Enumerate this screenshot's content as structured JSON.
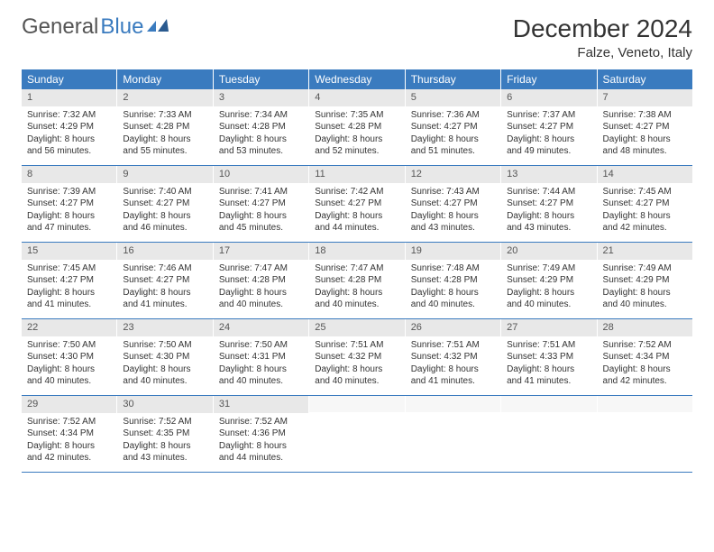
{
  "logo": {
    "text1": "General",
    "text2": "Blue"
  },
  "title": "December 2024",
  "location": "Falze, Veneto, Italy",
  "colors": {
    "header_bg": "#3a7bbf",
    "header_text": "#ffffff",
    "daynum_bg": "#e8e8e8",
    "text": "#333333"
  },
  "dayNames": [
    "Sunday",
    "Monday",
    "Tuesday",
    "Wednesday",
    "Thursday",
    "Friday",
    "Saturday"
  ],
  "weeks": [
    [
      {
        "num": "1",
        "sunrise": "7:32 AM",
        "sunset": "4:29 PM",
        "daylight": "8 hours and 56 minutes."
      },
      {
        "num": "2",
        "sunrise": "7:33 AM",
        "sunset": "4:28 PM",
        "daylight": "8 hours and 55 minutes."
      },
      {
        "num": "3",
        "sunrise": "7:34 AM",
        "sunset": "4:28 PM",
        "daylight": "8 hours and 53 minutes."
      },
      {
        "num": "4",
        "sunrise": "7:35 AM",
        "sunset": "4:28 PM",
        "daylight": "8 hours and 52 minutes."
      },
      {
        "num": "5",
        "sunrise": "7:36 AM",
        "sunset": "4:27 PM",
        "daylight": "8 hours and 51 minutes."
      },
      {
        "num": "6",
        "sunrise": "7:37 AM",
        "sunset": "4:27 PM",
        "daylight": "8 hours and 49 minutes."
      },
      {
        "num": "7",
        "sunrise": "7:38 AM",
        "sunset": "4:27 PM",
        "daylight": "8 hours and 48 minutes."
      }
    ],
    [
      {
        "num": "8",
        "sunrise": "7:39 AM",
        "sunset": "4:27 PM",
        "daylight": "8 hours and 47 minutes."
      },
      {
        "num": "9",
        "sunrise": "7:40 AM",
        "sunset": "4:27 PM",
        "daylight": "8 hours and 46 minutes."
      },
      {
        "num": "10",
        "sunrise": "7:41 AM",
        "sunset": "4:27 PM",
        "daylight": "8 hours and 45 minutes."
      },
      {
        "num": "11",
        "sunrise": "7:42 AM",
        "sunset": "4:27 PM",
        "daylight": "8 hours and 44 minutes."
      },
      {
        "num": "12",
        "sunrise": "7:43 AM",
        "sunset": "4:27 PM",
        "daylight": "8 hours and 43 minutes."
      },
      {
        "num": "13",
        "sunrise": "7:44 AM",
        "sunset": "4:27 PM",
        "daylight": "8 hours and 43 minutes."
      },
      {
        "num": "14",
        "sunrise": "7:45 AM",
        "sunset": "4:27 PM",
        "daylight": "8 hours and 42 minutes."
      }
    ],
    [
      {
        "num": "15",
        "sunrise": "7:45 AM",
        "sunset": "4:27 PM",
        "daylight": "8 hours and 41 minutes."
      },
      {
        "num": "16",
        "sunrise": "7:46 AM",
        "sunset": "4:27 PM",
        "daylight": "8 hours and 41 minutes."
      },
      {
        "num": "17",
        "sunrise": "7:47 AM",
        "sunset": "4:28 PM",
        "daylight": "8 hours and 40 minutes."
      },
      {
        "num": "18",
        "sunrise": "7:47 AM",
        "sunset": "4:28 PM",
        "daylight": "8 hours and 40 minutes."
      },
      {
        "num": "19",
        "sunrise": "7:48 AM",
        "sunset": "4:28 PM",
        "daylight": "8 hours and 40 minutes."
      },
      {
        "num": "20",
        "sunrise": "7:49 AM",
        "sunset": "4:29 PM",
        "daylight": "8 hours and 40 minutes."
      },
      {
        "num": "21",
        "sunrise": "7:49 AM",
        "sunset": "4:29 PM",
        "daylight": "8 hours and 40 minutes."
      }
    ],
    [
      {
        "num": "22",
        "sunrise": "7:50 AM",
        "sunset": "4:30 PM",
        "daylight": "8 hours and 40 minutes."
      },
      {
        "num": "23",
        "sunrise": "7:50 AM",
        "sunset": "4:30 PM",
        "daylight": "8 hours and 40 minutes."
      },
      {
        "num": "24",
        "sunrise": "7:50 AM",
        "sunset": "4:31 PM",
        "daylight": "8 hours and 40 minutes."
      },
      {
        "num": "25",
        "sunrise": "7:51 AM",
        "sunset": "4:32 PM",
        "daylight": "8 hours and 40 minutes."
      },
      {
        "num": "26",
        "sunrise": "7:51 AM",
        "sunset": "4:32 PM",
        "daylight": "8 hours and 41 minutes."
      },
      {
        "num": "27",
        "sunrise": "7:51 AM",
        "sunset": "4:33 PM",
        "daylight": "8 hours and 41 minutes."
      },
      {
        "num": "28",
        "sunrise": "7:52 AM",
        "sunset": "4:34 PM",
        "daylight": "8 hours and 42 minutes."
      }
    ],
    [
      {
        "num": "29",
        "sunrise": "7:52 AM",
        "sunset": "4:34 PM",
        "daylight": "8 hours and 42 minutes."
      },
      {
        "num": "30",
        "sunrise": "7:52 AM",
        "sunset": "4:35 PM",
        "daylight": "8 hours and 43 minutes."
      },
      {
        "num": "31",
        "sunrise": "7:52 AM",
        "sunset": "4:36 PM",
        "daylight": "8 hours and 44 minutes."
      },
      null,
      null,
      null,
      null
    ]
  ]
}
